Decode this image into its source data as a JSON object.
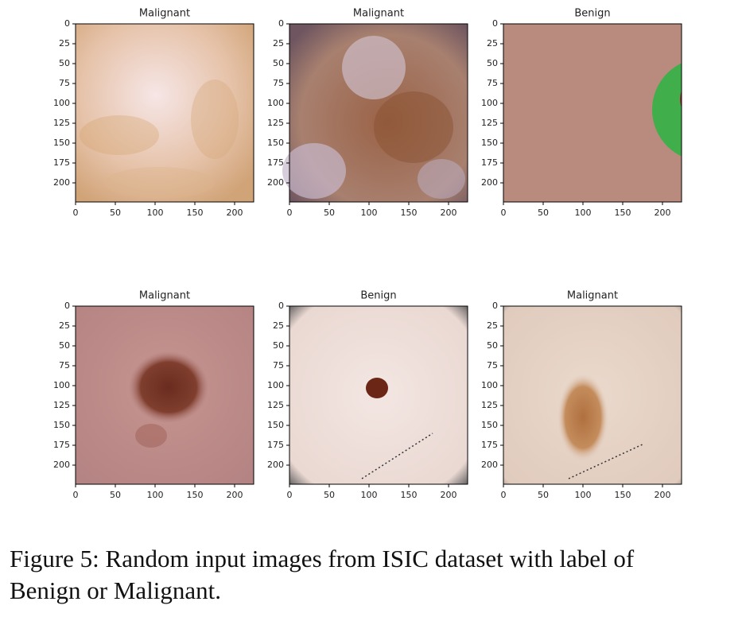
{
  "figure": {
    "panels": [
      {
        "title": "Malignant"
      },
      {
        "title": "Malignant"
      },
      {
        "title": "Benign"
      },
      {
        "title": "Malignant"
      },
      {
        "title": "Benign"
      },
      {
        "title": "Malignant"
      }
    ],
    "axes": {
      "xlim": [
        0,
        224
      ],
      "ylim": [
        0,
        224
      ],
      "xticks": [
        0,
        50,
        100,
        150,
        200
      ],
      "yticks": [
        0,
        25,
        50,
        75,
        100,
        125,
        150,
        175,
        200
      ]
    },
    "caption": [
      "Figure 5: Random input images from ISIC dataset with label of",
      "Benign or Malignant."
    ]
  }
}
